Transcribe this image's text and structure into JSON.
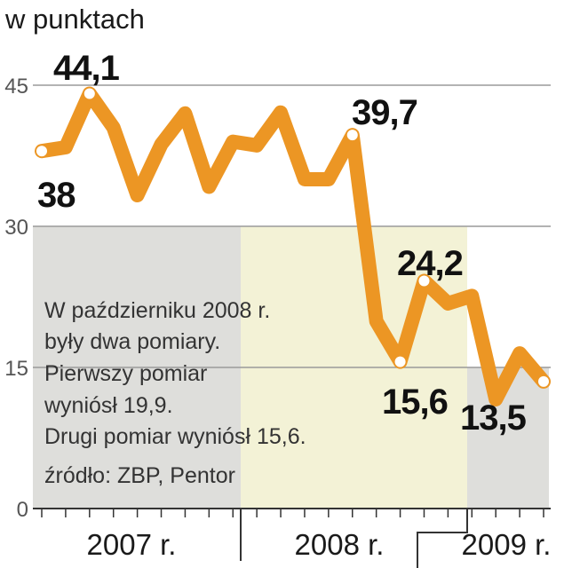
{
  "chart_data": {
    "type": "line",
    "title": "",
    "ylabel": "w punktach",
    "ylim": [
      0,
      45
    ],
    "yticks": [
      0,
      15,
      30,
      45
    ],
    "grid": true,
    "years": [
      {
        "label": "2007 r.",
        "background": "#dededb"
      },
      {
        "label": "2008 r.",
        "background": "#f3f2d6"
      },
      {
        "label": "2009 r.",
        "background": "#dededb"
      }
    ],
    "series": [
      {
        "values": [
          38.0,
          38.4,
          44.1,
          40.5,
          33.3,
          38.7,
          42.0,
          34.2,
          39.0,
          38.6,
          42.1,
          35.0,
          35.0,
          39.7,
          19.9,
          15.6,
          24.2,
          21.8,
          22.6,
          11.6,
          16.5,
          13.5
        ],
        "color": "#ec9624",
        "marker_fill": "#ffffff"
      }
    ],
    "annotations": [
      {
        "text": "44,1",
        "point_index": 2
      },
      {
        "text": "38",
        "point_index": 0
      },
      {
        "text": "39,7",
        "point_index": 13
      },
      {
        "text": "24,2",
        "point_index": 16
      },
      {
        "text": "15,6",
        "point_index": 15
      },
      {
        "text": "13,5",
        "point_index": 21,
        "color": "#c8102e"
      }
    ],
    "note_lines": [
      "W październiku 2008 r.",
      "były dwa pomiary.",
      "Pierwszy pomiar",
      "wyniósł 19,9.",
      "Drugi pomiar wyniósł 15,6.",
      "źródło: ZBP, Pentor"
    ]
  }
}
